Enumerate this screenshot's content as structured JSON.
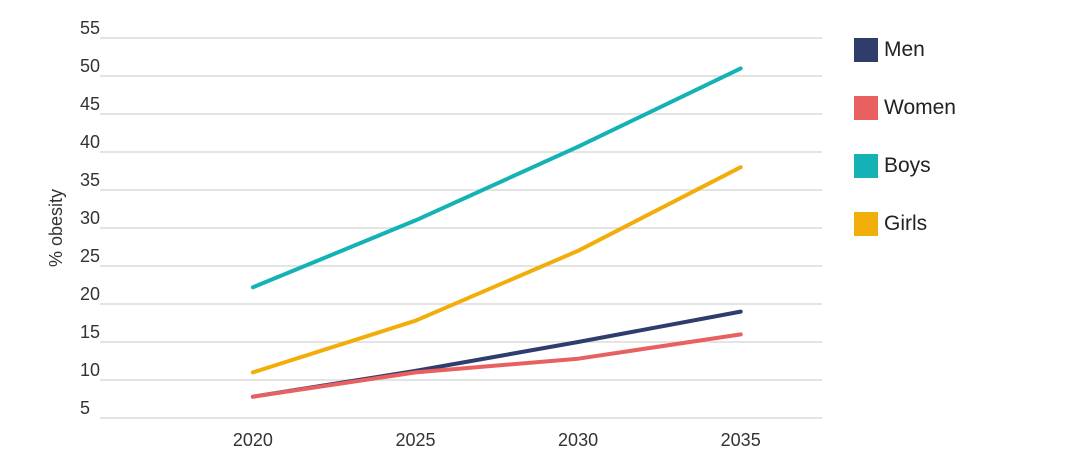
{
  "chart_data": {
    "type": "line",
    "ylabel": "% obesity",
    "xlabel": "",
    "x": [
      2020,
      2025,
      2030,
      2035
    ],
    "xlim": [
      2015.3,
      2037.5
    ],
    "ylim": [
      5,
      55
    ],
    "y_ticks": [
      5,
      10,
      15,
      20,
      25,
      30,
      35,
      40,
      45,
      50,
      55
    ],
    "x_ticks": [
      2020,
      2025,
      2030,
      2035
    ],
    "grid": true,
    "legend_position": "right",
    "series": [
      {
        "name": "Men",
        "color": "#2e3d6b",
        "values": [
          7.8,
          11.2,
          15.0,
          19.0
        ]
      },
      {
        "name": "Women",
        "color": "#e8605f",
        "values": [
          7.8,
          11.0,
          12.8,
          16.0
        ]
      },
      {
        "name": "Boys",
        "color": "#14b2b5",
        "values": [
          22.2,
          31.0,
          40.7,
          51.0
        ]
      },
      {
        "name": "Girls",
        "color": "#f1ae0a",
        "values": [
          11.0,
          17.8,
          27.0,
          38.0
        ]
      }
    ]
  }
}
